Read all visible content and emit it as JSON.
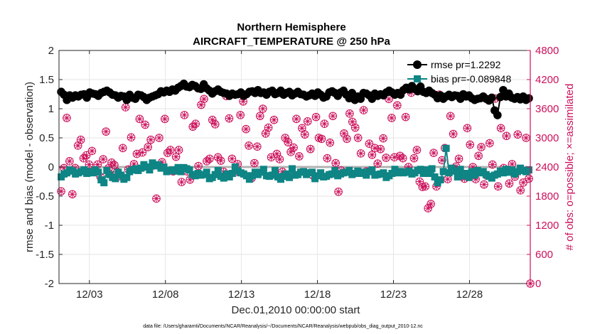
{
  "chart_data": {
    "type": "line",
    "title": "Northern Hemisphere",
    "subtitle": "AIRCRAFT_TEMPERATURE @ 250 hPa",
    "xlabel": "Dec.01,2010 00:00:00 start",
    "ylabel": "rmse and bias (model - observation)",
    "y2label": "# of obs: o=possible; ×=assimilated",
    "xlim": [
      0,
      31
    ],
    "ylim": [
      -2,
      2
    ],
    "y2lim": [
      0,
      4800
    ],
    "x_ticks": [
      2,
      7,
      12,
      17,
      22,
      27
    ],
    "x_tick_labels": [
      "12/03",
      "12/08",
      "12/13",
      "12/18",
      "12/23",
      "12/28"
    ],
    "y_ticks": [
      "-2",
      "-1.5",
      "-1",
      "-0.5",
      "0",
      "0.5",
      "1",
      "1.5",
      "2"
    ],
    "y2_ticks": [
      "0",
      "600",
      "1200",
      "1800",
      "2400",
      "3000",
      "3600",
      "4200",
      "4800"
    ],
    "grid": true,
    "legend_position": "top-right",
    "footnote": "data file: /Users/gharamti/Documents/NCAR/Reanalysis/~/Documents/NCAR/Reanalysis/webpub/obs_diag_output_2010-12.nc",
    "colors": {
      "rmse": "#000000",
      "bias": "#0f8585",
      "obs": "#cc0f5a",
      "zero_line": "#b3b3b3",
      "grid": "#e6e6e6"
    },
    "series": [
      {
        "name": "rmse pr=1.2292",
        "axis": "left",
        "marker": "circle",
        "values": [
          1.29,
          1.24,
          1.15,
          1.23,
          1.19,
          1.23,
          1.21,
          1.24,
          1.25,
          1.19,
          1.28,
          1.26,
          1.25,
          1.22,
          1.27,
          1.29,
          1.31,
          1.28,
          1.24,
          1.23,
          1.19,
          1.22,
          1.21,
          1.15,
          1.24,
          1.19,
          1.17,
          1.24,
          1.23,
          1.2,
          1.15,
          1.19,
          1.21,
          1.23,
          1.25,
          1.3,
          1.28,
          1.31,
          1.29,
          1.33,
          1.31,
          1.36,
          1.39,
          1.43,
          1.38,
          1.37,
          1.41,
          1.39,
          1.35,
          1.34,
          1.42,
          1.35,
          1.31,
          1.26,
          1.3,
          1.33,
          1.29,
          1.27,
          1.26,
          1.22,
          1.26,
          1.24,
          1.25,
          1.28,
          1.22,
          1.25,
          1.29,
          1.3,
          1.27,
          1.32,
          1.27,
          1.28,
          1.24,
          1.29,
          1.31,
          1.25,
          1.27,
          1.31,
          1.24,
          1.27,
          1.29,
          1.23,
          1.26,
          1.29,
          1.25,
          1.24,
          1.21,
          1.23,
          1.26,
          1.22,
          1.28,
          1.24,
          1.19,
          1.21,
          1.28,
          1.3,
          1.27,
          1.22,
          1.28,
          1.31,
          1.24,
          1.18,
          1.27,
          1.15,
          1.21,
          1.17,
          1.27,
          1.26,
          1.23,
          1.17,
          1.26,
          1.22,
          1.25,
          1.23,
          1.28,
          1.31,
          1.28,
          1.24,
          1.27,
          1.24,
          1.32,
          1.36,
          1.33,
          1.39,
          1.34,
          1.3,
          1.38,
          1.29,
          1.27,
          1.31,
          1.27,
          1.24,
          1.18,
          1.23,
          1.17,
          1.21,
          1.24,
          1.2,
          1.23,
          1.22,
          1.17,
          1.25,
          1.21,
          1.23,
          1.18,
          1.15,
          1.17,
          1.18,
          1.21,
          1.17,
          1.14,
          1.19,
          0.97,
          0.89,
          1.2,
          1.32,
          1.21,
          1.26,
          1.19,
          1.17,
          1.2,
          1.16,
          1.21,
          1.15,
          1.18
        ]
      },
      {
        "name": "bias pr=-0.089848",
        "axis": "left",
        "marker": "square",
        "values": [
          -0.17,
          -0.12,
          -0.1,
          -0.05,
          -0.07,
          -0.12,
          -0.1,
          -0.08,
          -0.05,
          -0.11,
          -0.08,
          -0.1,
          -0.05,
          -0.09,
          -0.22,
          -0.27,
          -0.06,
          -0.13,
          -0.18,
          -0.2,
          -0.09,
          -0.14,
          -0.21,
          -0.18,
          -0.08,
          -0.05,
          -0.03,
          -0.06,
          -0.02,
          0.04,
          0.0,
          -0.05,
          0.07,
          0.02,
          0.04,
          -0.02,
          0.0,
          -0.08,
          -0.06,
          -0.05,
          -0.07,
          -0.01,
          -0.08,
          -0.01,
          -0.03,
          -0.05,
          -0.13,
          -0.15,
          -0.11,
          -0.14,
          -0.13,
          -0.09,
          -0.2,
          -0.18,
          -0.13,
          -0.06,
          -0.16,
          -0.19,
          -0.12,
          -0.17,
          -0.11,
          0.0,
          -0.07,
          -0.1,
          -0.12,
          -0.15,
          -0.21,
          -0.15,
          -0.09,
          -0.13,
          -0.09,
          -0.04,
          -0.15,
          -0.16,
          -0.14,
          -0.06,
          -0.17,
          -0.21,
          -0.16,
          -0.12,
          -0.18,
          -0.03,
          -0.14,
          -0.13,
          -0.09,
          -0.08,
          -0.13,
          -0.1,
          -0.09,
          -0.2,
          -0.15,
          -0.1,
          -0.17,
          -0.16,
          -0.13,
          -0.12,
          -0.06,
          -0.15,
          -0.12,
          -0.1,
          -0.09,
          -0.06,
          -0.13,
          -0.11,
          -0.07,
          -0.11,
          -0.09,
          -0.14,
          -0.08,
          -0.05,
          -0.14,
          -0.13,
          -0.12,
          -0.1,
          -0.18,
          -0.15,
          -0.11,
          -0.04,
          -0.1,
          -0.08,
          -0.1,
          -0.09,
          -0.07,
          -0.12,
          -0.1,
          -0.06,
          -0.04,
          -0.11,
          -0.05,
          -0.11,
          -0.03,
          -0.17,
          -0.27,
          -0.22,
          -0.08,
          0.32,
          -0.1,
          -0.02,
          -0.07,
          -0.17,
          -0.04,
          -0.15,
          -0.11,
          -0.18,
          -0.08,
          -0.14,
          -0.06,
          -0.1,
          -0.08,
          -0.13,
          -0.16,
          -0.19,
          -0.14,
          -0.12,
          -0.07,
          -0.1,
          -0.04,
          -0.09,
          -0.05,
          -0.12,
          -0.08,
          -0.02,
          -0.06,
          -0.08,
          -0.05
        ]
      },
      {
        "name": "obs possible",
        "axis": "right",
        "marker": "circle-open",
        "values": [
          1900,
          2380,
          3410,
          2520,
          1840,
          2380,
          2840,
          2960,
          2580,
          2640,
          2450,
          2730,
          2300,
          2450,
          2200,
          2560,
          3130,
          2380,
          2490,
          2440,
          2300,
          2210,
          2790,
          3630,
          2350,
          3010,
          2460,
          2670,
          3390,
          2700,
          3270,
          2810,
          2960,
          2430,
          1750,
          3000,
          2500,
          3390,
          2690,
          2750,
          2310,
          2610,
          2750,
          2090,
          3470,
          2310,
          2140,
          3230,
          3290,
          2420,
          3680,
          3800,
          2520,
          2570,
          3370,
          3280,
          2600,
          2530,
          2300,
          3860,
          3400,
          2570,
          2290,
          2460,
          3470,
          3750,
          3180,
          2840,
          2170,
          2480,
          2820,
          3450,
          3600,
          3090,
          3210,
          2600,
          3370,
          2670,
          2560,
          2300,
          3000,
          2910,
          2710,
          2800,
          3390,
          2620,
          3200,
          3070,
          3340,
          2770,
          2220,
          3430,
          3000,
          2980,
          3290,
          2580,
          2900,
          3450,
          2480,
          1890,
          2330,
          3090,
          2980,
          3500,
          3330,
          3210,
          3000,
          2680,
          3570,
          2310,
          2880,
          2650,
          2790,
          2470,
          2770,
          2990,
          2590,
          3800,
          3410,
          2600,
          3670,
          2630,
          2580,
          3430,
          2400,
          3930,
          2580,
          2750,
          2100,
          1990,
          2000,
          1550,
          1640,
          2690,
          2000,
          3890,
          2540,
          2790,
          2150,
          3450,
          3080,
          2410,
          2570,
          2210,
          2160,
          3200,
          2860,
          2400,
          2150,
          2630,
          2810,
          2040,
          2220,
          2890,
          2450,
          3810,
          2000,
          3200,
          2380,
          3040,
          2060,
          2460,
          2200,
          3070,
          1920,
          2080,
          3000,
          2160
        ]
      },
      {
        "name": "obs assimilated",
        "axis": "right",
        "marker": "asterisk",
        "values": [
          1900,
          2380,
          3410,
          2520,
          1840,
          2380,
          2840,
          2960,
          2580,
          2640,
          2450,
          2730,
          2300,
          2450,
          2200,
          2560,
          3130,
          2380,
          2490,
          2440,
          2300,
          2210,
          2790,
          3630,
          2350,
          3010,
          2460,
          2670,
          3390,
          2700,
          3270,
          2810,
          2960,
          2430,
          1750,
          3000,
          2500,
          3390,
          2690,
          2750,
          2310,
          2610,
          2750,
          2090,
          3470,
          2310,
          2140,
          3230,
          3290,
          2420,
          3680,
          3800,
          2520,
          2570,
          3370,
          3280,
          2600,
          2530,
          2300,
          3860,
          3400,
          2570,
          2290,
          2460,
          3470,
          3750,
          3180,
          2840,
          2170,
          2480,
          2820,
          3450,
          3600,
          3090,
          3210,
          2600,
          3370,
          2670,
          2560,
          2300,
          3000,
          2910,
          2710,
          2800,
          3390,
          2620,
          3200,
          3070,
          3340,
          2770,
          2220,
          3430,
          3000,
          2980,
          3290,
          2580,
          2900,
          3450,
          2480,
          1890,
          2330,
          3090,
          2980,
          3500,
          3330,
          3210,
          3000,
          2680,
          3570,
          2310,
          2880,
          2650,
          2790,
          2470,
          2770,
          2990,
          2590,
          3800,
          3410,
          2600,
          3670,
          2630,
          2580,
          3430,
          2400,
          3930,
          2580,
          2750,
          2100,
          1990,
          2000,
          1550,
          1640,
          2690,
          2000,
          3890,
          2540,
          2790,
          2150,
          3450,
          3080,
          2410,
          2570,
          2210,
          2160,
          3200,
          2860,
          2400,
          2150,
          2630,
          2810,
          2040,
          2220,
          2890,
          2450,
          3810,
          2000,
          3200,
          2380,
          3040,
          2060,
          2460,
          2200,
          3070,
          1920,
          2080,
          3000,
          2160
        ]
      }
    ]
  }
}
